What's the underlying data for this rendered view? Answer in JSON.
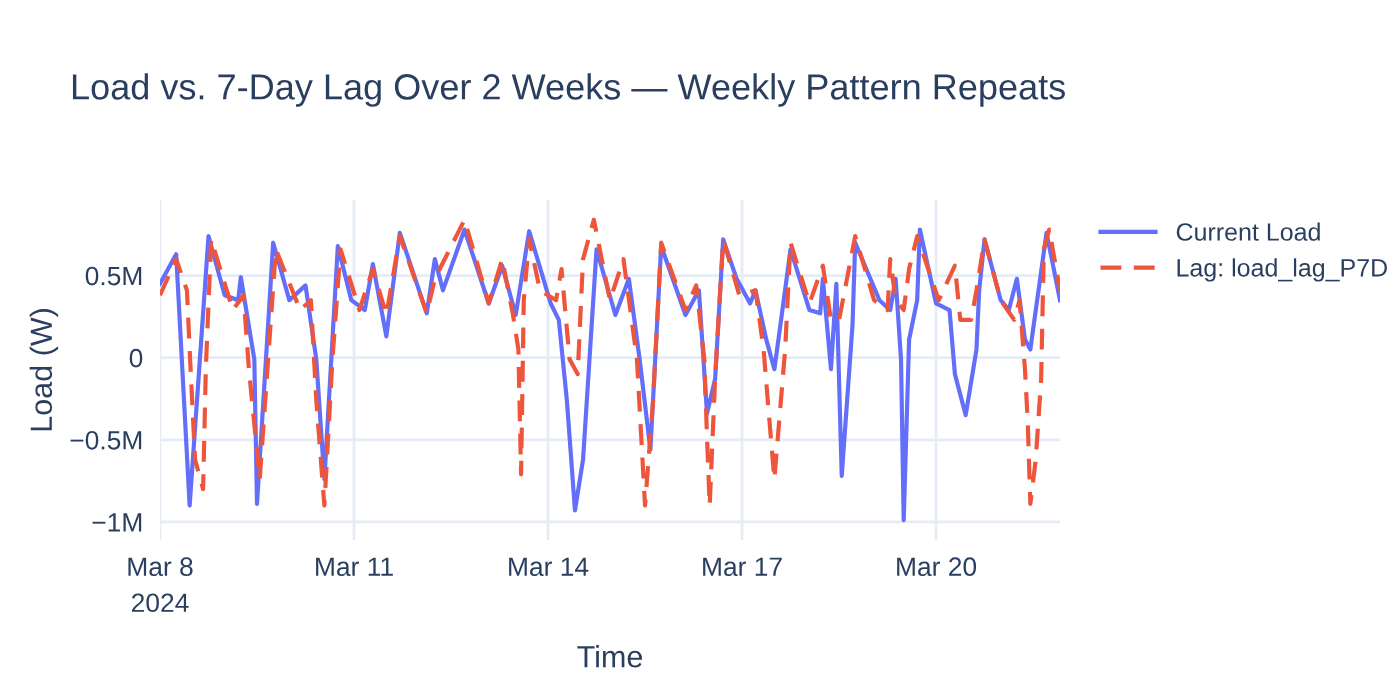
{
  "chart_data": {
    "type": "line",
    "title": "Load vs. 7-Day Lag Over 2 Weeks — Weekly Pattern Repeats",
    "xlabel": "Time",
    "ylabel": "Load (W)",
    "xlim": [
      "2024-03-08T00:00",
      "2024-03-21T22:00"
    ],
    "xticks": [
      {
        "value": "2024-03-08",
        "label": "Mar 8\n2024"
      },
      {
        "value": "2024-03-11",
        "label": "Mar 11"
      },
      {
        "value": "2024-03-14",
        "label": "Mar 14"
      },
      {
        "value": "2024-03-17",
        "label": "Mar 17"
      },
      {
        "value": "2024-03-20",
        "label": "Mar 20"
      }
    ],
    "ylim": [
      -1110000,
      960000
    ],
    "yticks": [
      {
        "value": -1000000,
        "label": "−1M"
      },
      {
        "value": -500000,
        "label": "−0.5M"
      },
      {
        "value": 0,
        "label": "0"
      },
      {
        "value": 500000,
        "label": "0.5M"
      }
    ],
    "grid": true,
    "legend": "right",
    "marker": "none",
    "series": [
      {
        "name": "Current Load",
        "color": "#636efa",
        "line_style": "solid",
        "x": [
          "2024-03-08T00:00",
          "2024-03-08T06:00",
          "2024-03-08T11:00",
          "2024-03-08T18:00",
          "2024-03-09T00:00",
          "2024-03-09T05:00",
          "2024-03-09T06:00",
          "2024-03-09T11:00",
          "2024-03-09T12:00",
          "2024-03-09T18:00",
          "2024-03-10T00:00",
          "2024-03-10T06:00",
          "2024-03-10T10:00",
          "2024-03-10T13:00",
          "2024-03-10T18:00",
          "2024-03-10T23:00",
          "2024-03-11T04:00",
          "2024-03-11T07:00",
          "2024-03-11T12:00",
          "2024-03-11T17:00",
          "2024-03-12T03:00",
          "2024-03-12T06:00",
          "2024-03-12T09:00",
          "2024-03-12T17:00",
          "2024-03-13T02:00",
          "2024-03-13T07:00",
          "2024-03-13T12:00",
          "2024-03-13T17:00",
          "2024-03-14T01:00",
          "2024-03-14T04:00",
          "2024-03-14T07:00",
          "2024-03-14T10:00",
          "2024-03-14T13:00",
          "2024-03-14T18:00",
          "2024-03-15T01:00",
          "2024-03-15T06:00",
          "2024-03-15T10:00",
          "2024-03-15T14:00",
          "2024-03-15T18:00",
          "2024-03-16T03:00",
          "2024-03-16T08:00",
          "2024-03-16T11:00",
          "2024-03-16T14:00",
          "2024-03-16T17:00",
          "2024-03-16T22:00",
          "2024-03-17T03:00",
          "2024-03-17T05:00",
          "2024-03-17T09:00",
          "2024-03-17T12:00",
          "2024-03-17T14:00",
          "2024-03-17T18:00",
          "2024-03-18T01:00",
          "2024-03-18T05:00",
          "2024-03-18T06:00",
          "2024-03-18T09:00",
          "2024-03-18T11:00",
          "2024-03-18T13:00",
          "2024-03-18T17:00",
          "2024-03-18T18:00",
          "2024-03-19T03:00",
          "2024-03-19T07:00",
          "2024-03-19T09:00",
          "2024-03-19T11:00",
          "2024-03-19T12:00",
          "2024-03-19T14:00",
          "2024-03-19T17:00",
          "2024-03-19T18:00",
          "2024-03-20T00:00",
          "2024-03-20T05:00",
          "2024-03-20T07:00",
          "2024-03-20T11:00",
          "2024-03-20T15:00",
          "2024-03-20T16:00",
          "2024-03-20T18:00",
          "2024-03-21T00:00",
          "2024-03-21T03:00",
          "2024-03-21T06:00",
          "2024-03-21T09:00",
          "2024-03-21T11:00",
          "2024-03-21T12:00",
          "2024-03-21T17:00",
          "2024-03-21T22:00"
        ],
        "values": [
          450000,
          630000,
          -900000,
          740000,
          380000,
          350000,
          490000,
          -10000,
          -890000,
          700000,
          350000,
          440000,
          -10000,
          -740000,
          680000,
          350000,
          290000,
          570000,
          130000,
          760000,
          270000,
          600000,
          410000,
          780000,
          330000,
          560000,
          260000,
          770000,
          330000,
          230000,
          -260000,
          -930000,
          -620000,
          660000,
          260000,
          480000,
          -10000,
          -560000,
          680000,
          260000,
          410000,
          -340000,
          -130000,
          720000,
          480000,
          330000,
          410000,
          110000,
          -70000,
          170000,
          660000,
          290000,
          270000,
          480000,
          -70000,
          450000,
          -720000,
          200000,
          700000,
          350000,
          290000,
          480000,
          -10000,
          -990000,
          110000,
          350000,
          780000,
          330000,
          290000,
          -100000,
          -350000,
          50000,
          410000,
          720000,
          350000,
          290000,
          480000,
          110000,
          50000,
          170000,
          760000,
          350000
        ]
      },
      {
        "name": "Lag: load_lag_P7D",
        "color": "#ef553b",
        "line_style": "dashed",
        "x": [
          "2024-03-08T00:00",
          "2024-03-08T06:00",
          "2024-03-08T10:00",
          "2024-03-08T11:00",
          "2024-03-08T13:00",
          "2024-03-08T16:00",
          "2024-03-08T17:00",
          "2024-03-08T19:00",
          "2024-03-09T03:00",
          "2024-03-09T07:00",
          "2024-03-09T09:00",
          "2024-03-09T13:00",
          "2024-03-09T19:00",
          "2024-03-10T04:00",
          "2024-03-10T08:00",
          "2024-03-10T10:00",
          "2024-03-10T13:00",
          "2024-03-10T16:00",
          "2024-03-10T19:00",
          "2024-03-11T02:00",
          "2024-03-11T07:00",
          "2024-03-11T12:00",
          "2024-03-11T17:00",
          "2024-03-12T03:00",
          "2024-03-12T06:00",
          "2024-03-12T17:00",
          "2024-03-13T02:00",
          "2024-03-13T07:00",
          "2024-03-13T11:00",
          "2024-03-13T13:00",
          "2024-03-13T14:00",
          "2024-03-13T15:00",
          "2024-03-13T17:00",
          "2024-03-13T21:00",
          "2024-03-14T03:00",
          "2024-03-14T05:00",
          "2024-03-14T08:00",
          "2024-03-14T11:00",
          "2024-03-14T13:00",
          "2024-03-14T17:00",
          "2024-03-14T23:00",
          "2024-03-15T04:00",
          "2024-03-15T09:00",
          "2024-03-15T12:00",
          "2024-03-15T15:00",
          "2024-03-15T18:00",
          "2024-03-16T03:00",
          "2024-03-16T07:00",
          "2024-03-16T10:00",
          "2024-03-16T11:00",
          "2024-03-16T12:00",
          "2024-03-16T14:00",
          "2024-03-16T17:00",
          "2024-03-16T23:00",
          "2024-03-17T05:00",
          "2024-03-17T08:00",
          "2024-03-17T10:00",
          "2024-03-17T12:00",
          "2024-03-17T16:00",
          "2024-03-17T18:00",
          "2024-03-18T01:00",
          "2024-03-18T06:00",
          "2024-03-18T09:00",
          "2024-03-18T12:00",
          "2024-03-18T18:00",
          "2024-03-19T01:00",
          "2024-03-19T06:00",
          "2024-03-19T07:00",
          "2024-03-19T09:00",
          "2024-03-19T12:00",
          "2024-03-19T14:00",
          "2024-03-19T17:00",
          "2024-03-20T01:00",
          "2024-03-20T07:00",
          "2024-03-20T09:00",
          "2024-03-20T13:00",
          "2024-03-20T15:00",
          "2024-03-20T18:00",
          "2024-03-21T00:00",
          "2024-03-21T05:00",
          "2024-03-21T07:00",
          "2024-03-21T09:00",
          "2024-03-21T10:00",
          "2024-03-21T11:00",
          "2024-03-21T13:00",
          "2024-03-21T15:00",
          "2024-03-21T16:00",
          "2024-03-21T18:00",
          "2024-03-21T22:00"
        ],
        "values": [
          380000,
          600000,
          410000,
          50000,
          -620000,
          -800000,
          -70000,
          720000,
          290000,
          380000,
          -70000,
          -740000,
          660000,
          290000,
          350000,
          -260000,
          -900000,
          -10000,
          660000,
          290000,
          540000,
          260000,
          740000,
          270000,
          480000,
          840000,
          330000,
          600000,
          260000,
          50000,
          -710000,
          350000,
          720000,
          410000,
          350000,
          540000,
          -10000,
          -100000,
          600000,
          840000,
          350000,
          600000,
          -10000,
          -900000,
          -260000,
          700000,
          290000,
          440000,
          -10000,
          -480000,
          -900000,
          -130000,
          720000,
          380000,
          410000,
          50000,
          -350000,
          -740000,
          50000,
          700000,
          330000,
          560000,
          230000,
          230000,
          740000,
          350000,
          290000,
          600000,
          350000,
          290000,
          540000,
          740000,
          350000,
          560000,
          230000,
          230000,
          410000,
          720000,
          350000,
          230000,
          350000,
          -70000,
          -380000,
          -890000,
          -620000,
          -130000,
          660000,
          780000,
          410000
        ]
      }
    ]
  }
}
